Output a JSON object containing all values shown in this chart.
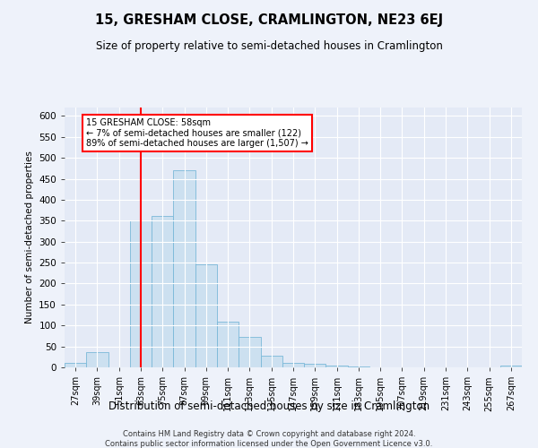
{
  "title": "15, GRESHAM CLOSE, CRAMLINGTON, NE23 6EJ",
  "subtitle": "Size of property relative to semi-detached houses in Cramlington",
  "xlabel": "Distribution of semi-detached houses by size in Cramlington",
  "ylabel": "Number of semi-detached properties",
  "footnote1": "Contains HM Land Registry data © Crown copyright and database right 2024.",
  "footnote2": "Contains public sector information licensed under the Open Government Licence v3.0.",
  "annotation_line1": "15 GRESHAM CLOSE: 58sqm",
  "annotation_line2": "← 7% of semi-detached houses are smaller (122)",
  "annotation_line3": "89% of semi-detached houses are larger (1,507) →",
  "bar_color": "#cce0f0",
  "bar_edge_color": "#7ab8d8",
  "marker_color": "red",
  "categories": [
    "27sqm",
    "39sqm",
    "51sqm",
    "63sqm",
    "75sqm",
    "87sqm",
    "99sqm",
    "111sqm",
    "123sqm",
    "135sqm",
    "147sqm",
    "159sqm",
    "171sqm",
    "183sqm",
    "195sqm",
    "207sqm",
    "219sqm",
    "231sqm",
    "243sqm",
    "255sqm",
    "267sqm"
  ],
  "values": [
    10,
    37,
    0,
    350,
    362,
    470,
    245,
    108,
    72,
    27,
    11,
    8,
    5,
    2,
    1,
    1,
    0,
    0,
    0,
    0,
    4
  ],
  "ylim": [
    0,
    620
  ],
  "yticks": [
    0,
    50,
    100,
    150,
    200,
    250,
    300,
    350,
    400,
    450,
    500,
    550,
    600
  ],
  "background_color": "#eef2fa",
  "plot_bg_color": "#e4eaf6"
}
